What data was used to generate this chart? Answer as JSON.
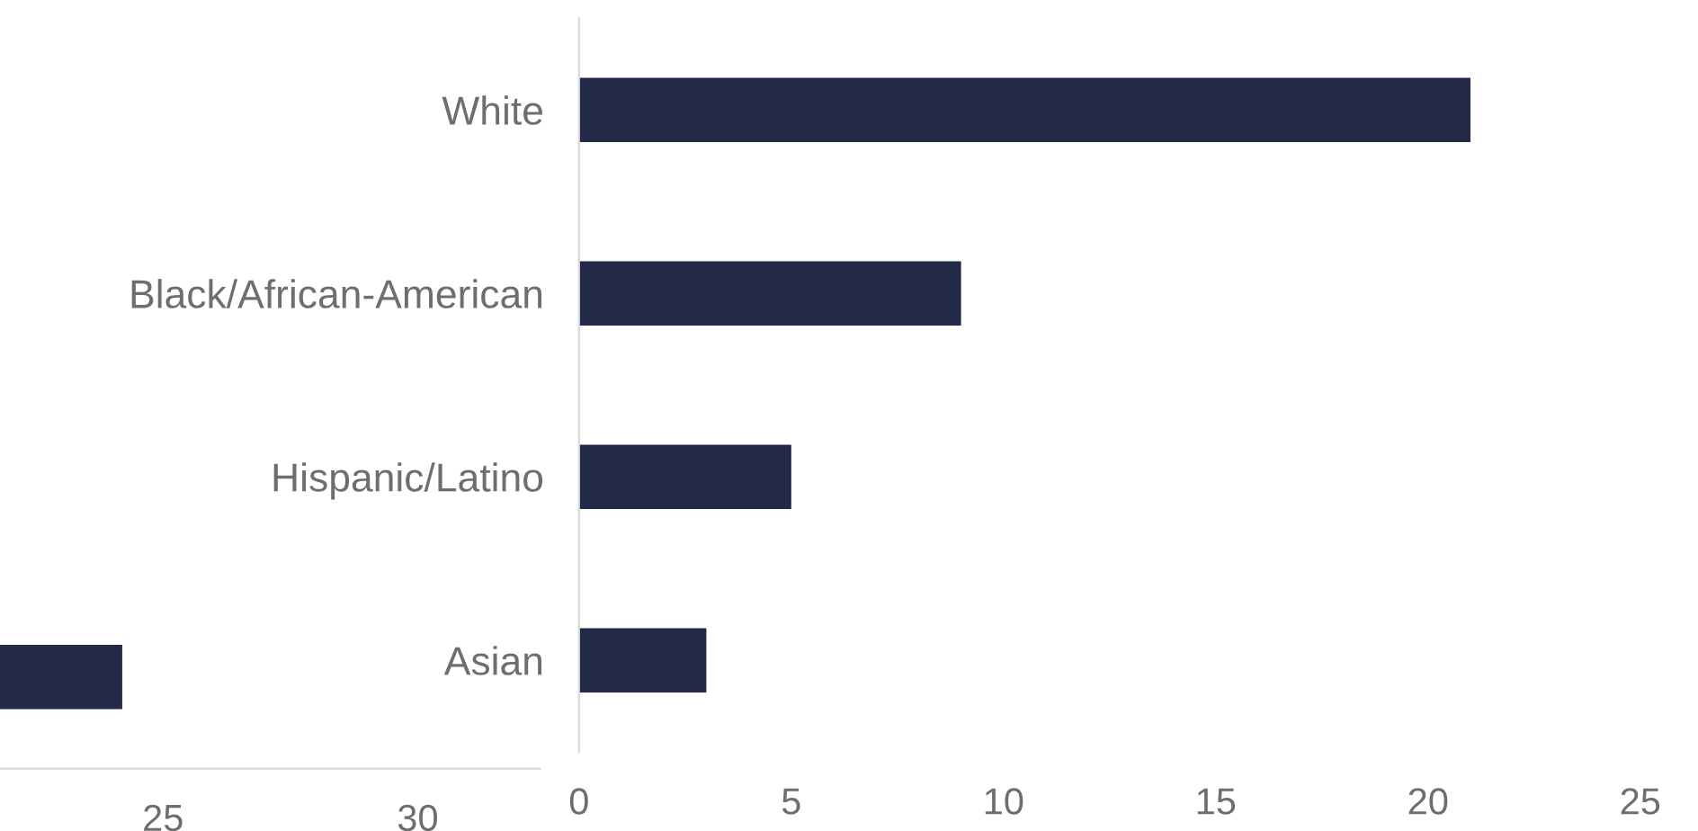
{
  "chart_data": [
    {
      "type": "bar",
      "orientation": "horizontal",
      "categories": [
        null,
        null,
        null,
        null
      ],
      "values": [
        null,
        null,
        null,
        24.2
      ],
      "color": "#222a48",
      "xlim": [
        21.8,
        32.4
      ],
      "xticks": [
        25,
        30
      ],
      "tick_labels": "x",
      "grid": false,
      "legend": false
    },
    {
      "type": "bar",
      "orientation": "horizontal",
      "categories": [
        "White",
        "Black/African-American",
        "Hispanic/Latino",
        "Asian"
      ],
      "values": [
        21,
        9,
        5,
        3
      ],
      "color": "#222a48",
      "xlim": [
        0,
        25
      ],
      "xticks": [
        0,
        5,
        10,
        15,
        20,
        25
      ],
      "grid": false,
      "legend": false
    }
  ]
}
